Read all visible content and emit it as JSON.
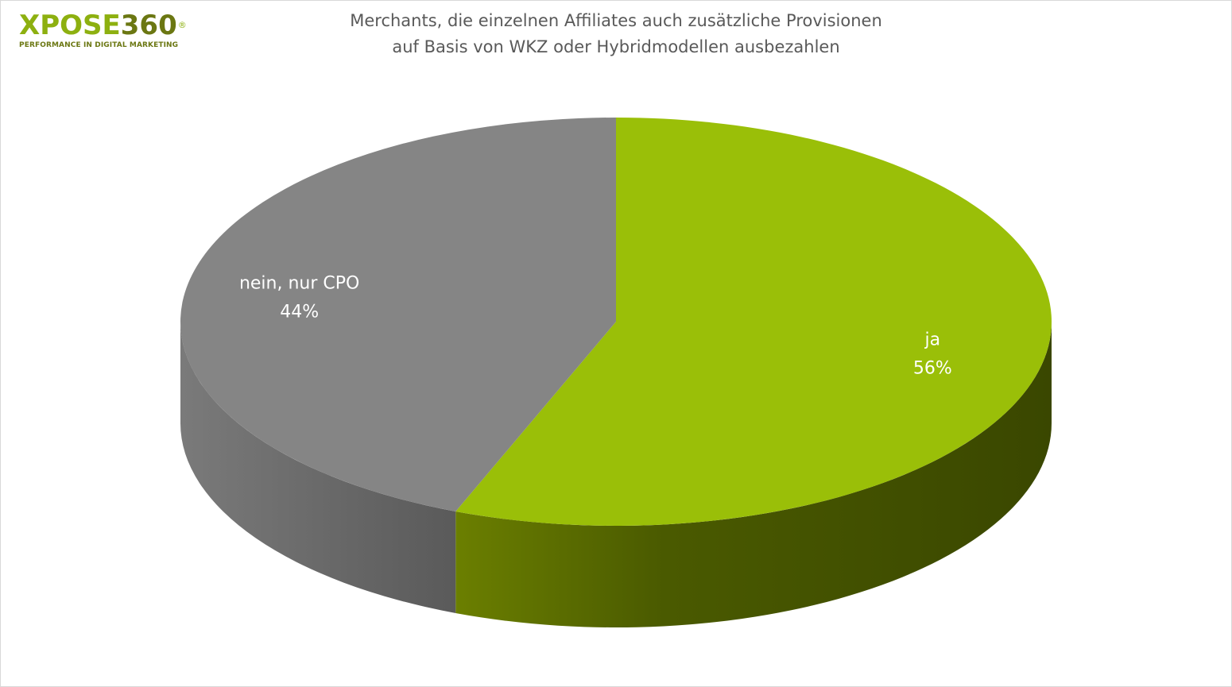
{
  "logo": {
    "brand_letters": "XPOSE",
    "brand_number": "360",
    "registered_mark": "®",
    "tagline": "PERFORMANCE IN DIGITAL MARKETING"
  },
  "chart_data": {
    "type": "pie",
    "title_lines": [
      "Merchants, die einzelnen Affiliates auch zusätzliche Provisionen",
      "auf Basis von WKZ oder Hybridmodellen ausbezahlen"
    ],
    "style": "3d",
    "slices": [
      {
        "label": "ja",
        "value": 56,
        "value_label": "56%",
        "color": "#9abf08",
        "side_color": "#3d4a00"
      },
      {
        "label": "nein, nur CPO",
        "value": 44,
        "value_label": "44%",
        "color": "#858585",
        "side_color": "#5e5e5e"
      }
    ],
    "legend": "none"
  }
}
